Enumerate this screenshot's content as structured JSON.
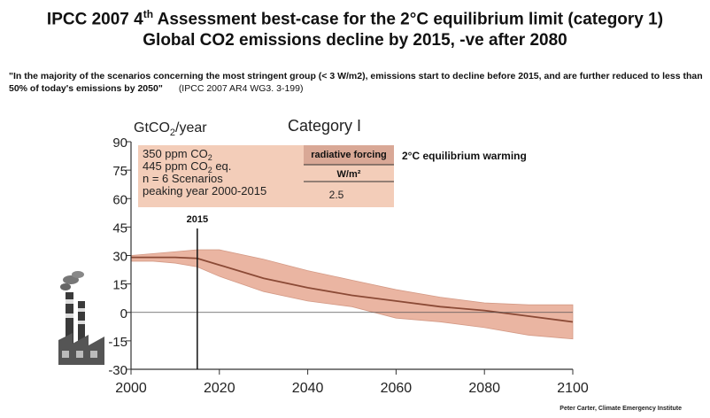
{
  "header": {
    "title_line1_a": "IPCC 2007 4",
    "title_line1_sup": "th",
    "title_line1_b": " Assessment best-case for the 2°C equilibrium limit  (category 1)",
    "title_line2": "Global CO2 emissions decline by 2015, -ve after 2080"
  },
  "quote": {
    "text": "\"In the majority of the scenarios concerning the most stringent group (< 3 W/m2), emissions start to decline before 2015, and are further reduced to less than 50% of today's emissions by 2050\"",
    "citation": "(IPCC 2007 AR4 WG3. 3-199)"
  },
  "credit": "Peter Carter, Climate Emergency Institute",
  "chart_data": {
    "type": "area",
    "title": "Category I",
    "ylabel_main": "GtCO",
    "ylabel_sub": "2",
    "ylabel_rest": "/year",
    "xlim": [
      2000,
      2100
    ],
    "ylim": [
      -30,
      90
    ],
    "x_ticks": [
      "2000",
      "2020",
      "2040",
      "2060",
      "2080",
      "2100"
    ],
    "x_tick_values": [
      2000,
      2020,
      2040,
      2060,
      2080,
      2100
    ],
    "y_ticks": [
      "90",
      "75",
      "60",
      "45",
      "30",
      "15",
      "0",
      "-15",
      "-30"
    ],
    "y_tick_values": [
      90,
      75,
      60,
      45,
      30,
      15,
      0,
      -15,
      -30
    ],
    "marker": {
      "year": 2015,
      "label": "2015"
    },
    "series": [
      {
        "x": [
          2000,
          2005,
          2010,
          2015,
          2020,
          2030,
          2040,
          2050,
          2060,
          2070,
          2080,
          2090,
          2100
        ],
        "values": [
          29,
          29,
          29,
          28.5,
          25,
          18,
          13,
          9,
          6,
          3,
          1,
          -2,
          -5
        ]
      }
    ],
    "range": {
      "x": [
        2000,
        2005,
        2010,
        2015,
        2020,
        2030,
        2040,
        2050,
        2060,
        2070,
        2080,
        2090,
        2100
      ],
      "upper": [
        30,
        31,
        32,
        33,
        33,
        28,
        22,
        17,
        12,
        8,
        5,
        4,
        4
      ],
      "lower": [
        27,
        27,
        26,
        24,
        19,
        11,
        6,
        3,
        -3,
        -5,
        -8,
        -12,
        -14
      ]
    },
    "legend": {
      "lines": [
        "350 ppm CO",
        "445 ppm CO",
        "n = 6 Scenarios",
        "peaking year 2000-2015"
      ],
      "line_units": [
        " 2",
        " 2 eq.",
        "",
        ""
      ],
      "forcing_header": "radiative forcing",
      "forcing_unit": "W/m²",
      "forcing_value": "2.5",
      "warming_label": "2°C equilibrium warming"
    },
    "colors": {
      "band": "#eab5a2",
      "line": "#8b4a36",
      "legend_box": "#f3cdb9",
      "legend_head": "#d9a896"
    }
  }
}
